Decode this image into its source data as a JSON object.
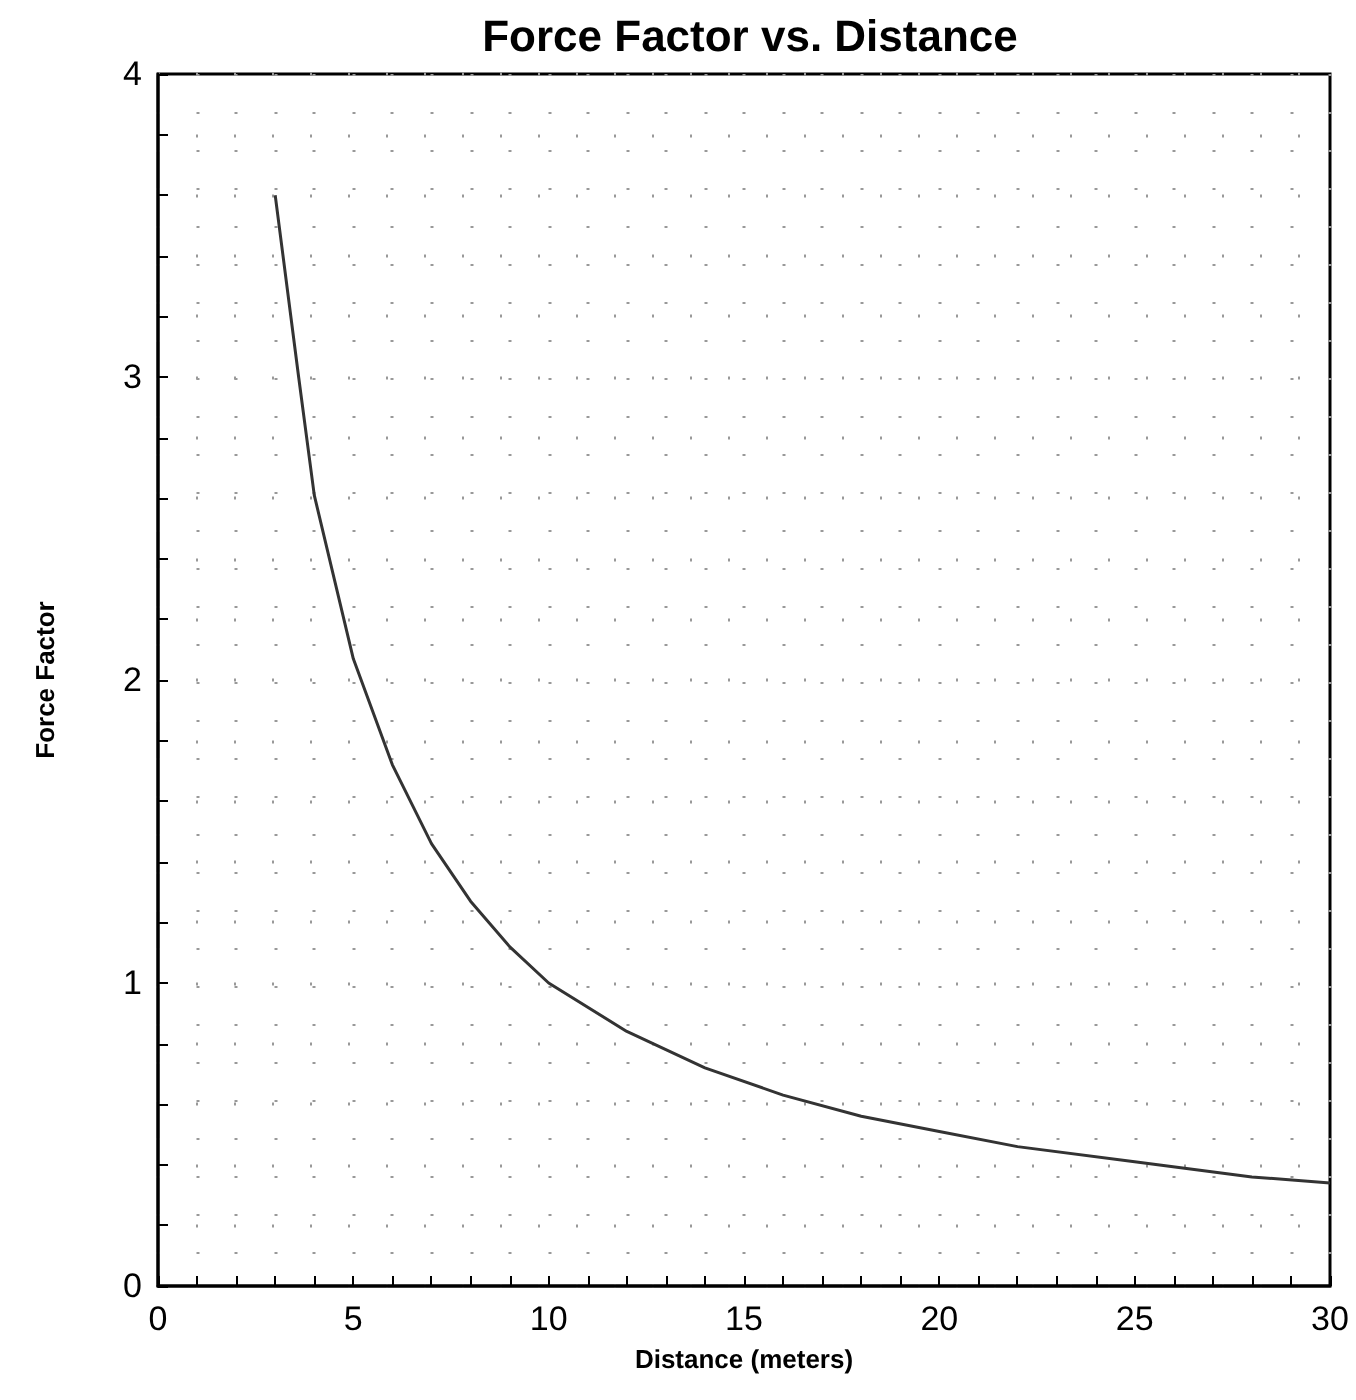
{
  "chart_data": {
    "type": "line",
    "title": "Force Factor vs. Distance",
    "xlabel": "Distance (meters)",
    "ylabel": "Force Factor",
    "series": [
      {
        "color": "#333333",
        "x": [
          3,
          3.6,
          4,
          5,
          6,
          7,
          8,
          9,
          10,
          12,
          14,
          16,
          18,
          20,
          22,
          25,
          28,
          30
        ],
        "values": [
          3.6,
          3.0,
          2.61,
          2.07,
          1.72,
          1.46,
          1.27,
          1.12,
          1.0,
          0.84,
          0.72,
          0.63,
          0.56,
          0.51,
          0.46,
          0.41,
          0.36,
          0.34
        ]
      }
    ],
    "xlim": [
      0,
      30
    ],
    "ylim": [
      0,
      4
    ],
    "xticks": [
      0,
      {
        "value": 1,
        "label": null
      },
      {
        "value": 2,
        "label": null
      },
      {
        "value": 3,
        "label": null
      },
      {
        "value": 4,
        "label": null
      },
      5,
      {
        "value": 6,
        "label": null
      },
      {
        "value": 7,
        "label": null
      },
      {
        "value": 8,
        "label": null
      },
      {
        "value": 9,
        "label": null
      },
      10,
      {
        "value": 11,
        "label": null
      },
      {
        "value": 12,
        "label": null
      },
      {
        "value": 13,
        "label": null
      },
      {
        "value": 14,
        "label": null
      },
      15,
      {
        "value": 16,
        "label": null
      },
      {
        "value": 17,
        "label": null
      },
      {
        "value": 18,
        "label": null
      },
      {
        "value": 19,
        "label": null
      },
      20,
      {
        "value": 21,
        "label": null
      },
      {
        "value": 22,
        "label": null
      },
      {
        "value": 23,
        "label": null
      },
      {
        "value": 24,
        "label": null
      },
      25,
      {
        "value": 26,
        "label": null
      },
      {
        "value": 27,
        "label": null
      },
      {
        "value": 28,
        "label": null
      },
      {
        "value": 29,
        "label": null
      },
      30
    ],
    "yticks": [
      0,
      {
        "value": 0.2,
        "label": null
      },
      {
        "value": 0.4,
        "label": null
      },
      {
        "value": 0.6,
        "label": null
      },
      {
        "value": 0.8,
        "label": null
      },
      1,
      {
        "value": 1.2,
        "label": null
      },
      {
        "value": 1.4,
        "label": null
      },
      {
        "value": 1.6,
        "label": null
      },
      {
        "value": 1.8,
        "label": null
      },
      2,
      {
        "value": 2.2,
        "label": null
      },
      {
        "value": 2.4,
        "label": null
      },
      {
        "value": 2.6,
        "label": null
      },
      {
        "value": 2.8,
        "label": null
      },
      3,
      {
        "value": 3.2,
        "label": null
      },
      {
        "value": 3.4,
        "label": null
      },
      {
        "value": 3.6,
        "label": null
      },
      {
        "value": 3.8,
        "label": null
      },
      4
    ],
    "grid": true,
    "marker": "none",
    "line_style": "solid"
  }
}
